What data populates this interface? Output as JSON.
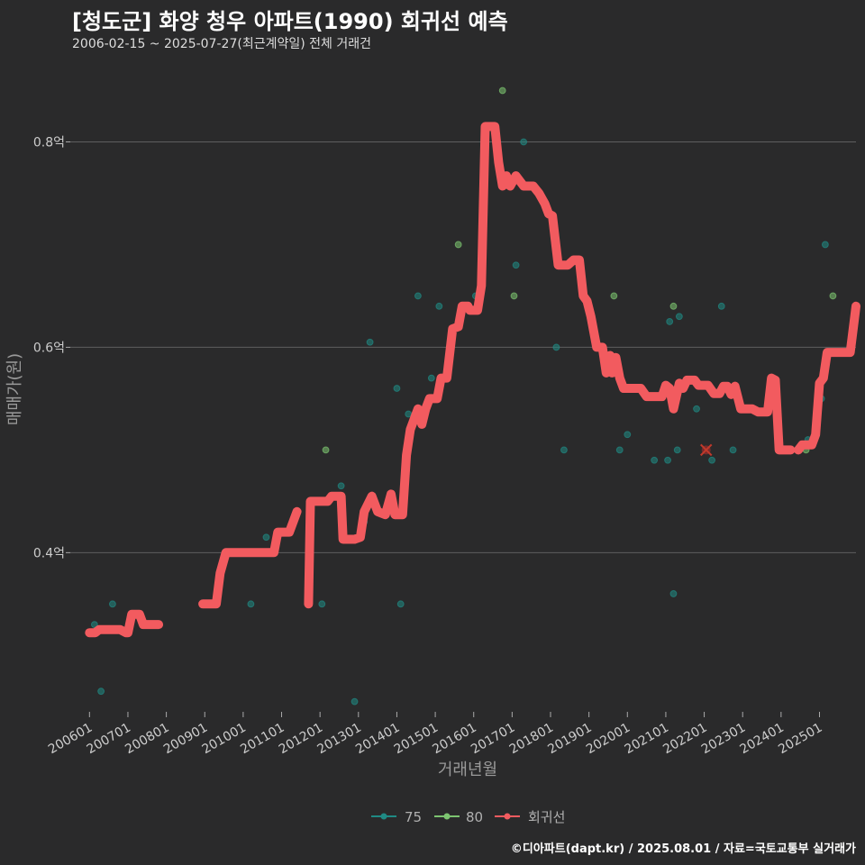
{
  "header": {
    "title": "[청도군] 화양 청우 아파트(1990) 회귀선 예측",
    "subtitle": "2006-02-15 ~ 2025-07-27(최근계약일) 전체 거래건"
  },
  "footer": {
    "credit": "©디아파트(dapt.kr) / 2025.08.01 / 자료=국토교통부 실거래가"
  },
  "colors": {
    "background": "#2a2a2b",
    "grid": "#5f5f5f",
    "series_75": "#1f8a84",
    "series_80": "#7cc470",
    "regression": "#f25b5f"
  },
  "chart_data": {
    "type": "scatter",
    "xlabel": "거래년월",
    "ylabel": "매매가(원)",
    "xlim": [
      2005.5,
      2025.95
    ],
    "ylim": [
      0.245,
      0.875
    ],
    "y_ticks": [
      {
        "value": 0.4,
        "label": "0.4억"
      },
      {
        "value": 0.6,
        "label": "0.6억"
      },
      {
        "value": 0.8,
        "label": "0.8억"
      }
    ],
    "x_ticks": [
      {
        "value": 2006.0,
        "label": "200601"
      },
      {
        "value": 2007.0,
        "label": "200701"
      },
      {
        "value": 2008.0,
        "label": "200801"
      },
      {
        "value": 2009.0,
        "label": "200901"
      },
      {
        "value": 2010.0,
        "label": "201001"
      },
      {
        "value": 2011.0,
        "label": "201101"
      },
      {
        "value": 2012.0,
        "label": "201201"
      },
      {
        "value": 2013.0,
        "label": "201301"
      },
      {
        "value": 2014.0,
        "label": "201401"
      },
      {
        "value": 2015.0,
        "label": "201501"
      },
      {
        "value": 2016.0,
        "label": "201601"
      },
      {
        "value": 2017.0,
        "label": "201701"
      },
      {
        "value": 2018.0,
        "label": "201801"
      },
      {
        "value": 2019.0,
        "label": "201901"
      },
      {
        "value": 2020.0,
        "label": "202001"
      },
      {
        "value": 2021.0,
        "label": "202101"
      },
      {
        "value": 2022.0,
        "label": "202201"
      },
      {
        "value": 2023.0,
        "label": "202301"
      },
      {
        "value": 2024.0,
        "label": "202401"
      },
      {
        "value": 2025.0,
        "label": "202501"
      }
    ],
    "legend": {
      "position": "bottom",
      "items": [
        "75",
        "80",
        "회귀선"
      ]
    },
    "series": [
      {
        "name": "75",
        "points": [
          [
            2006.13,
            0.33
          ],
          [
            2006.3,
            0.265
          ],
          [
            2006.6,
            0.35
          ],
          [
            2010.2,
            0.35
          ],
          [
            2010.6,
            0.415
          ],
          [
            2012.05,
            0.35
          ],
          [
            2012.55,
            0.465
          ],
          [
            2012.9,
            0.255
          ],
          [
            2013.15,
            0.43
          ],
          [
            2013.3,
            0.605
          ],
          [
            2014.0,
            0.56
          ],
          [
            2014.1,
            0.35
          ],
          [
            2014.3,
            0.535
          ],
          [
            2014.55,
            0.65
          ],
          [
            2014.9,
            0.57
          ],
          [
            2015.1,
            0.64
          ],
          [
            2016.05,
            0.65
          ],
          [
            2017.1,
            0.68
          ],
          [
            2017.3,
            0.8
          ],
          [
            2017.7,
            0.75
          ],
          [
            2018.15,
            0.6
          ],
          [
            2018.35,
            0.5
          ],
          [
            2019.8,
            0.5
          ],
          [
            2020.0,
            0.515
          ],
          [
            2020.7,
            0.49
          ],
          [
            2021.05,
            0.49
          ],
          [
            2021.1,
            0.625
          ],
          [
            2021.2,
            0.36
          ],
          [
            2021.3,
            0.5
          ],
          [
            2021.35,
            0.63
          ],
          [
            2021.8,
            0.54
          ],
          [
            2022.2,
            0.49
          ],
          [
            2022.45,
            0.64
          ],
          [
            2022.75,
            0.5
          ],
          [
            2024.7,
            0.51
          ],
          [
            2025.05,
            0.55
          ],
          [
            2025.15,
            0.7
          ]
        ]
      },
      {
        "name": "80",
        "points": [
          [
            2012.15,
            0.5
          ],
          [
            2015.6,
            0.7
          ],
          [
            2016.75,
            0.85
          ],
          [
            2017.05,
            0.65
          ],
          [
            2019.65,
            0.65
          ],
          [
            2021.2,
            0.64
          ],
          [
            2024.65,
            0.5
          ],
          [
            2025.35,
            0.65
          ]
        ]
      }
    ],
    "regression": {
      "name": "회귀선",
      "segments": [
        [
          [
            2006.0,
            0.322
          ],
          [
            2006.15,
            0.322
          ],
          [
            2006.25,
            0.325
          ],
          [
            2006.8,
            0.325
          ],
          [
            2006.95,
            0.322
          ],
          [
            2007.0,
            0.322
          ],
          [
            2007.1,
            0.34
          ],
          [
            2007.3,
            0.34
          ],
          [
            2007.4,
            0.33
          ],
          [
            2007.8,
            0.33
          ]
        ],
        [
          [
            2008.95,
            0.35
          ],
          [
            2009.3,
            0.35
          ],
          [
            2009.4,
            0.38
          ],
          [
            2009.55,
            0.4
          ],
          [
            2010.5,
            0.4
          ],
          [
            2010.6,
            0.4
          ],
          [
            2010.8,
            0.4
          ],
          [
            2010.9,
            0.42
          ],
          [
            2011.2,
            0.42
          ],
          [
            2011.4,
            0.44
          ]
        ],
        [
          [
            2011.7,
            0.35
          ],
          [
            2011.75,
            0.45
          ],
          [
            2012.2,
            0.45
          ],
          [
            2012.3,
            0.455
          ],
          [
            2012.55,
            0.455
          ],
          [
            2012.6,
            0.413
          ],
          [
            2012.9,
            0.413
          ],
          [
            2013.05,
            0.415
          ],
          [
            2013.15,
            0.44
          ],
          [
            2013.35,
            0.455
          ],
          [
            2013.5,
            0.44
          ],
          [
            2013.7,
            0.437
          ],
          [
            2013.85,
            0.457
          ],
          [
            2013.95,
            0.437
          ],
          [
            2014.15,
            0.437
          ],
          [
            2014.25,
            0.495
          ],
          [
            2014.35,
            0.52
          ],
          [
            2014.55,
            0.54
          ],
          [
            2014.65,
            0.525
          ],
          [
            2014.75,
            0.54
          ],
          [
            2014.85,
            0.55
          ],
          [
            2015.05,
            0.55
          ],
          [
            2015.15,
            0.57
          ],
          [
            2015.3,
            0.57
          ],
          [
            2015.45,
            0.618
          ],
          [
            2015.6,
            0.62
          ],
          [
            2015.7,
            0.64
          ],
          [
            2015.85,
            0.64
          ],
          [
            2015.9,
            0.636
          ],
          [
            2016.1,
            0.636
          ],
          [
            2016.2,
            0.66
          ],
          [
            2016.3,
            0.815
          ],
          [
            2016.55,
            0.815
          ],
          [
            2016.65,
            0.78
          ],
          [
            2016.75,
            0.757
          ],
          [
            2016.85,
            0.767
          ],
          [
            2016.95,
            0.757
          ],
          [
            2017.1,
            0.767
          ],
          [
            2017.3,
            0.757
          ],
          [
            2017.55,
            0.757
          ],
          [
            2017.7,
            0.75
          ],
          [
            2017.85,
            0.74
          ],
          [
            2017.95,
            0.73
          ],
          [
            2018.05,
            0.728
          ],
          [
            2018.2,
            0.68
          ],
          [
            2018.45,
            0.68
          ],
          [
            2018.6,
            0.685
          ],
          [
            2018.75,
            0.685
          ],
          [
            2018.85,
            0.65
          ],
          [
            2018.95,
            0.645
          ],
          [
            2019.05,
            0.63
          ],
          [
            2019.2,
            0.6
          ],
          [
            2019.35,
            0.6
          ],
          [
            2019.45,
            0.575
          ],
          [
            2019.55,
            0.592
          ],
          [
            2019.6,
            0.575
          ],
          [
            2019.7,
            0.59
          ],
          [
            2019.8,
            0.57
          ],
          [
            2019.9,
            0.56
          ],
          [
            2020.35,
            0.56
          ],
          [
            2020.5,
            0.552
          ],
          [
            2020.9,
            0.552
          ],
          [
            2021.0,
            0.563
          ],
          [
            2021.1,
            0.56
          ],
          [
            2021.2,
            0.54
          ],
          [
            2021.35,
            0.565
          ],
          [
            2021.45,
            0.56
          ],
          [
            2021.55,
            0.568
          ],
          [
            2021.75,
            0.568
          ],
          [
            2021.85,
            0.563
          ],
          [
            2022.1,
            0.563
          ],
          [
            2022.25,
            0.555
          ],
          [
            2022.4,
            0.555
          ],
          [
            2022.5,
            0.562
          ],
          [
            2022.6,
            0.562
          ],
          [
            2022.7,
            0.554
          ],
          [
            2022.8,
            0.562
          ],
          [
            2022.95,
            0.54
          ],
          [
            2023.25,
            0.54
          ],
          [
            2023.4,
            0.537
          ],
          [
            2023.65,
            0.537
          ],
          [
            2023.75,
            0.57
          ],
          [
            2023.85,
            0.568
          ],
          [
            2023.95,
            0.5
          ],
          [
            2024.25,
            0.5
          ]
        ],
        [
          [
            2024.45,
            0.5
          ],
          [
            2024.55,
            0.505
          ],
          [
            2024.8,
            0.505
          ],
          [
            2024.9,
            0.515
          ],
          [
            2025.0,
            0.565
          ],
          [
            2025.1,
            0.57
          ],
          [
            2025.2,
            0.595
          ],
          [
            2025.8,
            0.595
          ],
          [
            2025.9,
            0.625
          ],
          [
            2025.95,
            0.64
          ]
        ]
      ]
    },
    "marker": {
      "x": 2022.05,
      "y": 0.5
    }
  }
}
